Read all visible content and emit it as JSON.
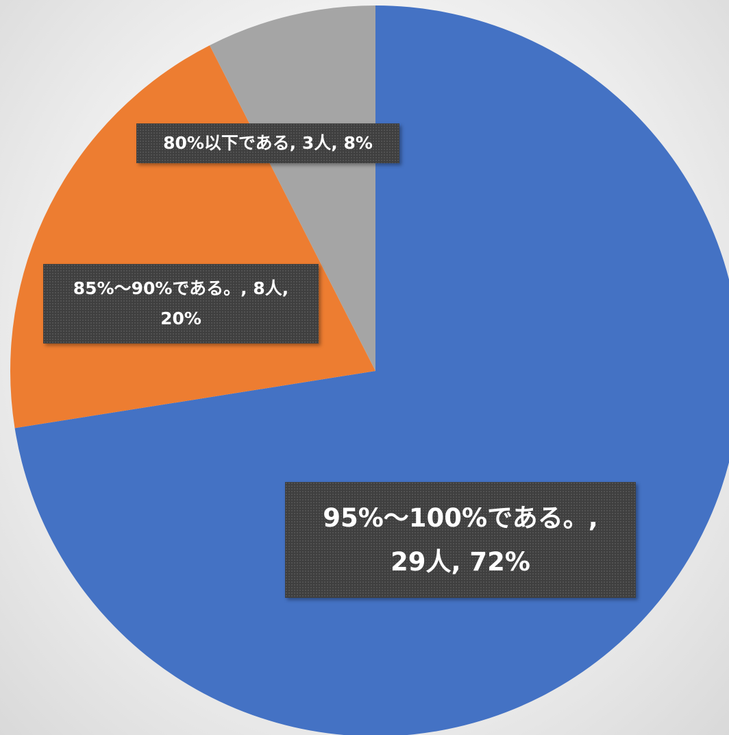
{
  "chart_data": {
    "type": "pie",
    "title": "",
    "start_angle_deg": 90,
    "direction": "clockwise",
    "slices": [
      {
        "name": "95%～100%である。",
        "count": 29,
        "percent": 72,
        "color": "#4472C4",
        "label_lines": [
          "95%～100%である。,",
          "29人, 72%"
        ]
      },
      {
        "name": "85%～90%である。",
        "count": 8,
        "percent": 20,
        "color": "#ED7D31",
        "label_lines": [
          "85%～90%である。, 8人,",
          "20%"
        ]
      },
      {
        "name": "80%以下である",
        "count": 3,
        "percent": 8,
        "color": "#A5A5A5",
        "label_lines": [
          "80%以下である, 3人, 8%"
        ]
      }
    ]
  }
}
